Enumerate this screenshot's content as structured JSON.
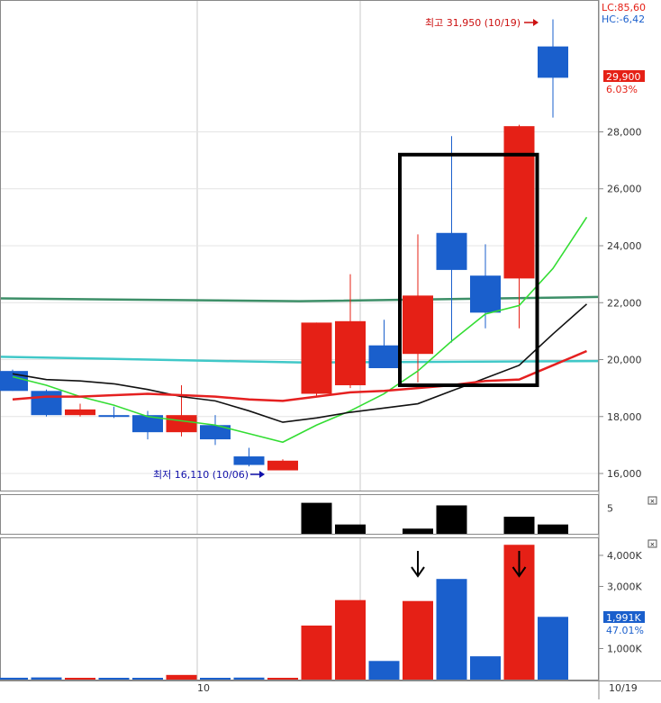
{
  "chart_data": [
    {
      "type": "candlestick",
      "panel": "price",
      "y_ticks": [
        "28,000",
        "26,000",
        "24,000",
        "22,000",
        "20,000",
        "18,000",
        "16,000"
      ],
      "y_tick_values": [
        28000,
        26000,
        24000,
        22000,
        20000,
        18000,
        16000
      ],
      "ylim": [
        15400,
        32600
      ],
      "x_labels": [
        "10",
        "10/19"
      ],
      "indicators": {
        "lc": "LC:85,60",
        "hc": "HC:-6,42"
      },
      "last_price": {
        "value": "29,900",
        "change": "6.03%"
      },
      "high_annotation": {
        "label": "최고 31,950 (10/19)",
        "value": 31950
      },
      "low_annotation": {
        "label": "최저 16,110 (10/06)",
        "value": 16110
      },
      "candles": [
        {
          "o": 19600,
          "h": 19650,
          "l": 18900,
          "c": 18900
        },
        {
          "o": 18900,
          "h": 18950,
          "l": 18000,
          "c": 18050
        },
        {
          "o": 18050,
          "h": 18450,
          "l": 18000,
          "c": 18250
        },
        {
          "o": 18050,
          "h": 18350,
          "l": 17950,
          "c": 18000
        },
        {
          "o": 18050,
          "h": 18200,
          "l": 17200,
          "c": 17450
        },
        {
          "o": 17450,
          "h": 19100,
          "l": 17300,
          "c": 18050
        },
        {
          "o": 17700,
          "h": 18050,
          "l": 17000,
          "c": 17200
        },
        {
          "o": 16600,
          "h": 16900,
          "l": 16250,
          "c": 16300
        },
        {
          "o": 16110,
          "h": 16500,
          "l": 16110,
          "c": 16450
        },
        {
          "o": 18800,
          "h": 21300,
          "l": 18700,
          "c": 21300
        },
        {
          "o": 19100,
          "h": 23000,
          "l": 19000,
          "c": 21350
        },
        {
          "o": 20500,
          "h": 21400,
          "l": 19700,
          "c": 19700
        },
        {
          "o": 20200,
          "h": 24400,
          "l": 19200,
          "c": 22250
        },
        {
          "o": 24450,
          "h": 27850,
          "l": 20600,
          "c": 23150
        },
        {
          "o": 22950,
          "h": 24050,
          "l": 21100,
          "c": 21650
        },
        {
          "o": 22850,
          "h": 28250,
          "l": 21100,
          "c": 28200
        },
        {
          "o": 31000,
          "h": 31950,
          "l": 28500,
          "c": 29900
        }
      ],
      "flat_lines": [
        {
          "color": "#3d8f68",
          "values": [
            22150,
            22050,
            22200
          ]
        },
        {
          "color": "#40c8c8",
          "values": [
            20100,
            19900,
            19950
          ]
        }
      ],
      "moving_averages": [
        {
          "color": "#33dd33",
          "values": [
            19400,
            19100,
            18700,
            18400,
            18000,
            17850,
            17700,
            17400,
            17100,
            17700,
            18200,
            18800,
            19600,
            20650,
            21600,
            21900,
            23200,
            25000
          ]
        },
        {
          "color": "#111111",
          "values": [
            19500,
            19300,
            19250,
            19150,
            18950,
            18700,
            18550,
            18200,
            17800,
            17950,
            18150,
            18300,
            18450,
            18900,
            19350,
            19800,
            20900,
            21950
          ]
        },
        {
          "color": "#e52020",
          "values": [
            18600,
            18700,
            18700,
            18750,
            18800,
            18750,
            18700,
            18600,
            18550,
            18700,
            18850,
            18900,
            19000,
            19100,
            19250,
            19300,
            19800,
            20300
          ]
        }
      ],
      "highlight_box": {
        "from_index": 12,
        "to_index": 15,
        "y_top": 27200,
        "y_bottom": 19100
      }
    },
    {
      "type": "bar",
      "panel": "indicator",
      "y_ticks": [
        "5"
      ],
      "ylim": [
        0,
        7.5
      ],
      "bars": [
        {
          "index": 9,
          "value": 6.0
        },
        {
          "index": 10,
          "value": 1.8
        },
        {
          "index": 12,
          "value": 1.0
        },
        {
          "index": 13,
          "value": 5.5
        },
        {
          "index": 15,
          "value": 3.3
        },
        {
          "index": 16,
          "value": 1.8
        }
      ]
    },
    {
      "type": "bar",
      "panel": "volume",
      "y_ticks": [
        "4,000K",
        "3,000K",
        "1,000K"
      ],
      "y_tick_values": [
        4000,
        3000,
        1000
      ],
      "ylim": [
        0,
        4550
      ],
      "last_value": {
        "value": "1,991K",
        "change": "47.01%"
      },
      "values": [
        60,
        70,
        50,
        50,
        50,
        150,
        55,
        65,
        55,
        1740,
        2560,
        600,
        2530,
        3240,
        750,
        4340,
        2020
      ],
      "arrow_indices": [
        12,
        15
      ]
    }
  ],
  "colors": {
    "up": "#e52016",
    "down": "#1a5fcc",
    "black_bar": "#000000",
    "grid": "#c8c8c8",
    "axis_text": "#333333",
    "lc_text": "#e52016",
    "hc_text": "#1a5fcc",
    "high_text": "#cc1111",
    "low_text": "#1111aa"
  }
}
